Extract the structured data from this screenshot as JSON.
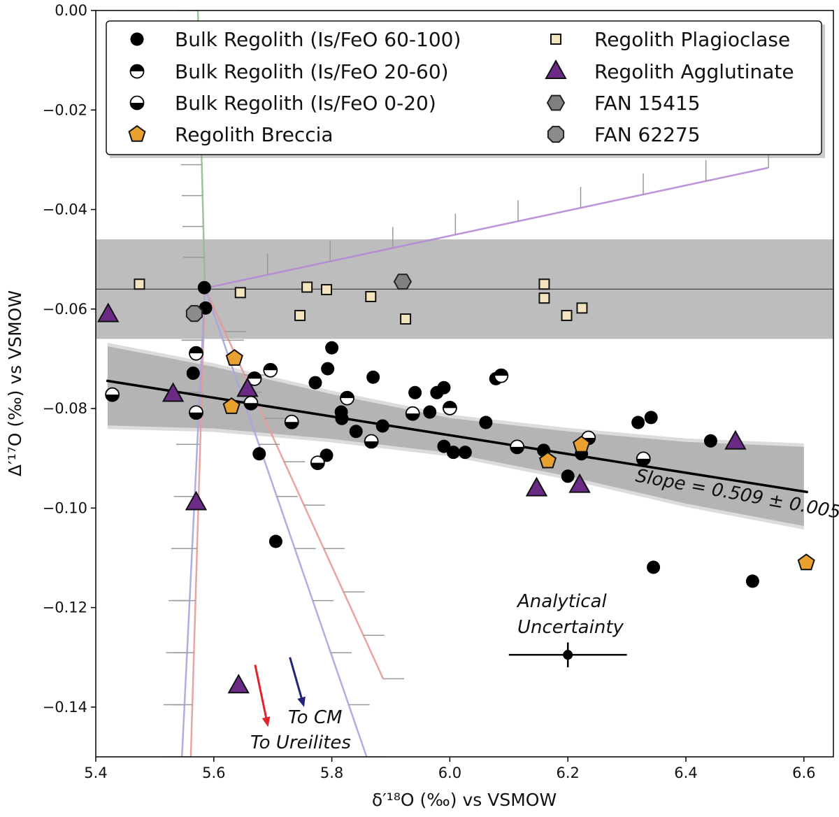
{
  "chart_data": {
    "type": "scatter",
    "xlabel": "δ′¹⁸O (‰) vs VSMOW",
    "ylabel": "Δ′¹⁷O (‰) vs VSMOW",
    "xlim": [
      5.4,
      6.65
    ],
    "ylim": [
      -0.15,
      0.0
    ],
    "xticks": [
      5.4,
      5.6,
      5.8,
      6.0,
      6.2,
      6.4,
      6.6
    ],
    "xtick_labels": [
      "5.4",
      "5.6",
      "5.8",
      "6.0",
      "6.2",
      "6.4",
      "6.6"
    ],
    "yticks": [
      0.0,
      -0.02,
      -0.04,
      -0.06,
      -0.08,
      -0.1,
      -0.12,
      -0.14
    ],
    "ytick_labels": [
      "0.00",
      "−0.02",
      "−0.04",
      "−0.06",
      "−0.08",
      "−0.10",
      "−0.12",
      "−0.14"
    ],
    "grid": false,
    "legend_placement": "top",
    "series": [
      {
        "name": "Bulk Regolith (Is/FeO 60-100)",
        "marker": "circle-filled",
        "color": "#000000",
        "points": [
          [
            5.584,
            -0.0557
          ],
          [
            5.586,
            -0.0598
          ],
          [
            5.565,
            -0.0729
          ],
          [
            5.8,
            -0.0678
          ],
          [
            5.793,
            -0.072
          ],
          [
            5.772,
            -0.0748
          ],
          [
            5.87,
            -0.0737
          ],
          [
            5.941,
            -0.0768
          ],
          [
            5.978,
            -0.0768
          ],
          [
            5.99,
            -0.0758
          ],
          [
            5.966,
            -0.0807
          ],
          [
            5.816,
            -0.0807
          ],
          [
            5.817,
            -0.082
          ],
          [
            5.841,
            -0.0846
          ],
          [
            5.886,
            -0.0835
          ],
          [
            5.99,
            -0.0876
          ],
          [
            6.006,
            -0.0888
          ],
          [
            6.026,
            -0.0888
          ],
          [
            6.061,
            -0.0828
          ],
          [
            5.677,
            -0.0891
          ],
          [
            5.705,
            -0.1067
          ],
          [
            5.791,
            -0.0894
          ],
          [
            6.078,
            -0.074
          ],
          [
            6.159,
            -0.0884
          ],
          [
            6.223,
            -0.0891
          ],
          [
            6.2,
            -0.0936
          ],
          [
            6.319,
            -0.0828
          ],
          [
            6.341,
            -0.0818
          ],
          [
            6.442,
            -0.0865
          ],
          [
            6.345,
            -0.1119
          ],
          [
            6.513,
            -0.1147
          ]
        ]
      },
      {
        "name": "Bulk Regolith (Is/FeO 20-60)",
        "marker": "circle-top-half",
        "color": "#000000",
        "points": [
          [
            5.57,
            -0.0689
          ],
          [
            5.669,
            -0.074
          ],
          [
            5.696,
            -0.0723
          ],
          [
            5.826,
            -0.0779
          ],
          [
            6.0,
            -0.0799
          ],
          [
            6.087,
            -0.0734
          ]
        ]
      },
      {
        "name": "Bulk Regolith (Is/FeO 0-20)",
        "marker": "circle-bottom-half",
        "color": "#000000",
        "points": [
          [
            5.428,
            -0.0772
          ],
          [
            5.57,
            -0.0808
          ],
          [
            5.663,
            -0.0789
          ],
          [
            5.732,
            -0.0827
          ],
          [
            5.937,
            -0.081
          ],
          [
            5.867,
            -0.0866
          ],
          [
            5.776,
            -0.0909
          ],
          [
            6.114,
            -0.0877
          ],
          [
            6.235,
            -0.0859
          ],
          [
            6.328,
            -0.0901
          ]
        ]
      },
      {
        "name": "Regolith Breccia",
        "marker": "pentagon",
        "color": "#e8a02e",
        "points": [
          [
            5.635,
            -0.0699
          ],
          [
            5.63,
            -0.0796
          ],
          [
            6.166,
            -0.0905
          ],
          [
            6.223,
            -0.0873
          ],
          [
            6.604,
            -0.111
          ]
        ]
      },
      {
        "name": "Regolith Plagioclase",
        "marker": "square",
        "color": "#f3e4bf",
        "points": [
          [
            5.474,
            -0.055
          ],
          [
            5.645,
            -0.0567
          ],
          [
            5.758,
            -0.0556
          ],
          [
            5.791,
            -0.0561
          ],
          [
            5.866,
            -0.0575
          ],
          [
            5.746,
            -0.0613
          ],
          [
            5.925,
            -0.062
          ],
          [
            6.16,
            -0.055
          ],
          [
            6.16,
            -0.0578
          ],
          [
            6.198,
            -0.0613
          ],
          [
            6.224,
            -0.0598
          ]
        ]
      },
      {
        "name": "Regolith Agglutinate",
        "marker": "triangle",
        "color": "#6b2a85",
        "points": [
          [
            5.421,
            -0.0611
          ],
          [
            5.531,
            -0.0771
          ],
          [
            5.657,
            -0.0761
          ],
          [
            5.57,
            -0.0989
          ],
          [
            5.642,
            -0.1357
          ],
          [
            6.484,
            -0.0867
          ],
          [
            6.147,
            -0.0961
          ],
          [
            6.22,
            -0.0954
          ]
        ]
      },
      {
        "name": "FAN 15415",
        "marker": "hexagon",
        "color": "#808080",
        "points": [
          [
            5.92,
            -0.0545
          ]
        ]
      },
      {
        "name": "FAN 62275",
        "marker": "octagon",
        "color": "#8c8c8c",
        "points": [
          [
            5.567,
            -0.0609
          ]
        ]
      }
    ],
    "regression": {
      "label": "Slope = 0.509 ± 0.005",
      "line": [
        [
          5.418,
          -0.0744
        ],
        [
          6.607,
          -0.0968
        ]
      ],
      "band_x": [
        5.42,
        5.6,
        5.8,
        6.0,
        6.2,
        6.4,
        6.6
      ],
      "band_upper": [
        -0.0675,
        -0.0716,
        -0.0771,
        -0.0819,
        -0.0846,
        -0.0867,
        -0.0877
      ],
      "band_lower": [
        -0.0834,
        -0.084,
        -0.0861,
        -0.0889,
        -0.0936,
        -0.0991,
        -0.1036
      ],
      "color": "#000000",
      "band_color": "#b4b4b4"
    },
    "reference_band": {
      "center": -0.056,
      "upper": -0.046,
      "lower": -0.066,
      "color": "#bdbdbd"
    },
    "mixing_lines": [
      {
        "color": "#b58ad6",
        "from": [
          5.585,
          -0.0558
        ],
        "to": [
          6.54,
          -0.0316
        ],
        "ticks": "up"
      },
      {
        "color": "#8fbf8f",
        "from": [
          5.585,
          -0.0558
        ],
        "to": [
          5.573,
          0.0
        ],
        "ticks": "left"
      },
      {
        "color": "#e89a9a",
        "from": [
          5.585,
          -0.0558
        ],
        "to": [
          5.887,
          -0.1343
        ],
        "ticks": "right"
      },
      {
        "color": "#e89a9a",
        "from": [
          5.585,
          -0.0558
        ],
        "to": [
          5.561,
          -0.15
        ],
        "ticks": "left"
      },
      {
        "color": "#a6a6e0",
        "from": [
          5.585,
          -0.0558
        ],
        "to": [
          5.859,
          -0.15
        ],
        "ticks": "right"
      },
      {
        "color": "#a6a6e0",
        "from": [
          5.585,
          -0.0558
        ],
        "to": [
          5.546,
          -0.15
        ],
        "ticks": "left"
      }
    ],
    "uncertainty": {
      "label_line1": "Analytical",
      "label_line2": "Uncertainty",
      "x": 6.2,
      "y": -0.1295,
      "xerr": 0.1,
      "yerr": 0.0025
    },
    "arrows": [
      {
        "label": "To CM",
        "color": "#23237a",
        "from": [
          5.729,
          -0.13
        ],
        "to": [
          5.753,
          -0.14
        ]
      },
      {
        "label": "To Ureilites",
        "color": "#e0242a",
        "from": [
          5.67,
          -0.1315
        ],
        "to": [
          5.692,
          -0.144
        ]
      }
    ]
  }
}
